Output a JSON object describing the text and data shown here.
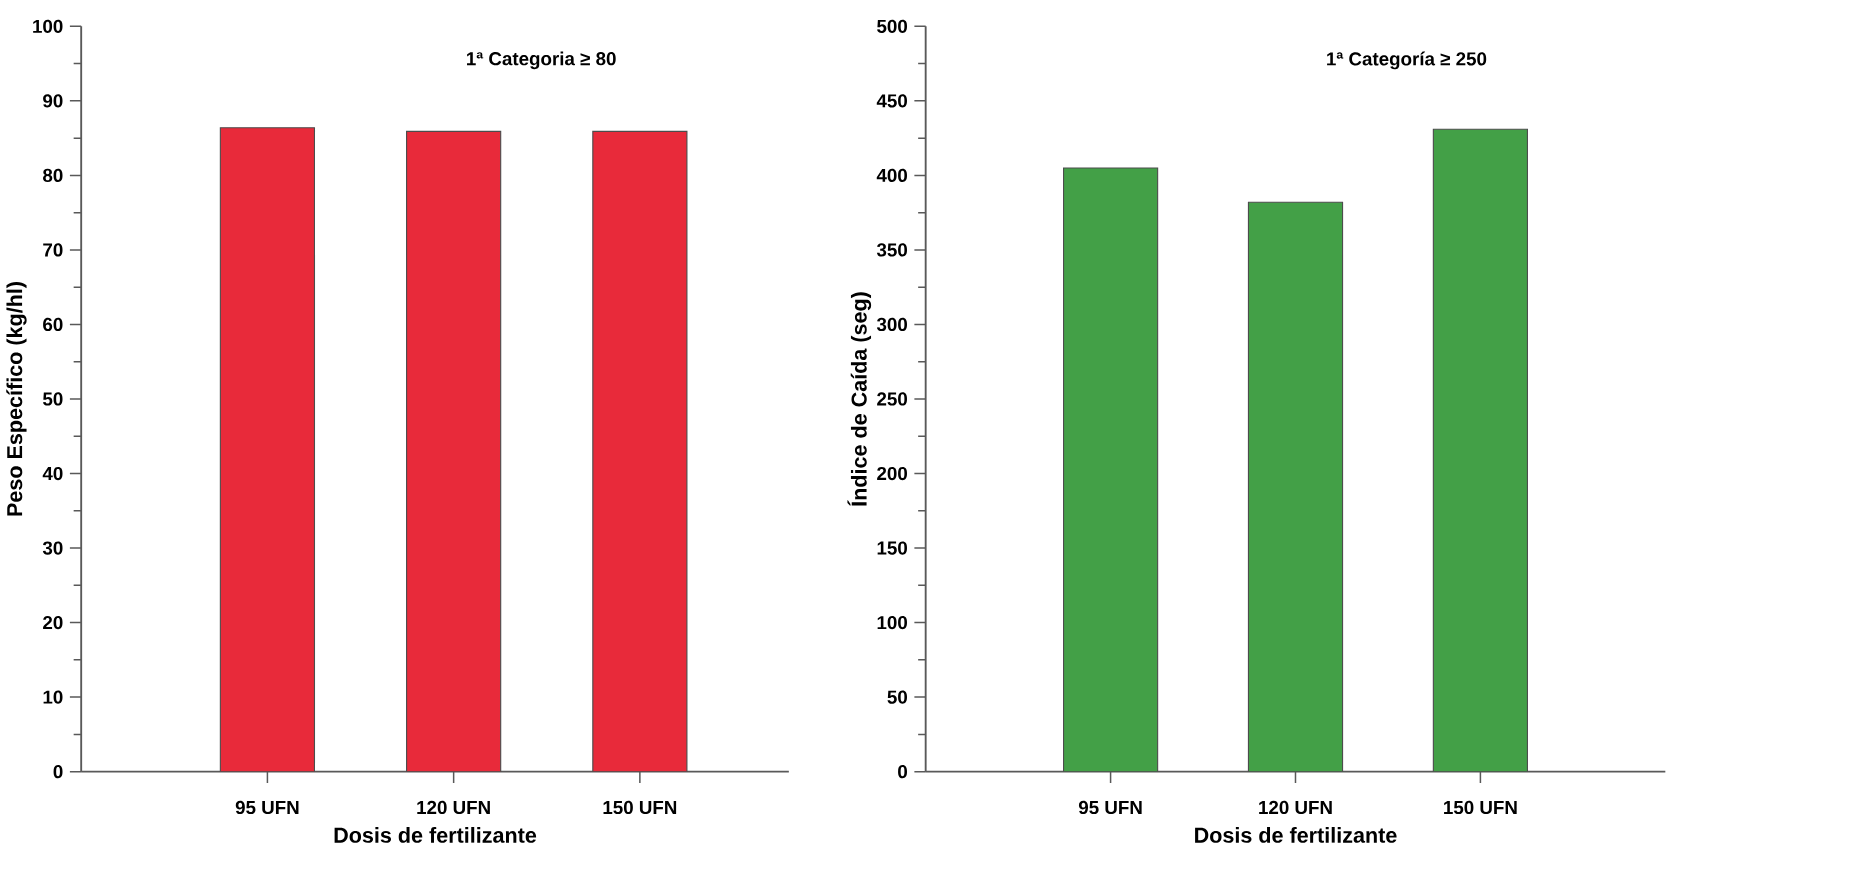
{
  "chart_data": [
    {
      "type": "bar",
      "categories": [
        "95 UFN",
        "120 UFN",
        "150 UFN"
      ],
      "values": [
        86.4,
        85.9,
        85.9
      ],
      "color": "#e82a3a",
      "xlabel": "Dosis de fertilizante",
      "ylabel": "Peso Específico (kg/hl)",
      "ylim": [
        0,
        100
      ],
      "yticks": [
        0,
        10,
        20,
        30,
        40,
        50,
        60,
        70,
        80,
        90,
        100
      ],
      "annotations": [
        "1ª Categoria ≥ 80"
      ]
    },
    {
      "type": "bar",
      "categories": [
        "95 UFN",
        "120 UFN",
        "150 UFN"
      ],
      "values": [
        405,
        382,
        431
      ],
      "color": "#43a047",
      "xlabel": "Dosis de fertilizante",
      "ylabel": "Índice de Caída (seg)",
      "ylim": [
        0,
        500
      ],
      "yticks": [
        0,
        50,
        100,
        150,
        200,
        250,
        300,
        350,
        400,
        450,
        500
      ],
      "annotations": [
        "1ª Categoría ≥ 250"
      ]
    }
  ]
}
